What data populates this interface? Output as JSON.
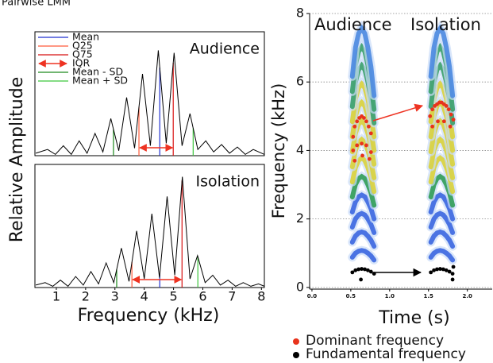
{
  "header": "Pairwise LMM",
  "chart_data": [
    {
      "type": "line",
      "label": "Audience",
      "color": "#000000",
      "ylabel": "Relative Amplitude",
      "x": [
        0.3,
        0.7,
        0.97,
        1.24,
        1.51,
        1.78,
        2.05,
        2.32,
        2.59,
        2.86,
        3.13,
        3.4,
        3.67,
        3.94,
        4.21,
        4.48,
        4.75,
        5.02,
        5.29,
        5.56,
        5.83,
        6.1,
        6.37,
        6.64,
        6.91,
        7.18,
        7.45,
        7.72,
        8.1
      ],
      "values": [
        0.02,
        0.05,
        0.01,
        0.08,
        0.01,
        0.12,
        0.02,
        0.18,
        0.03,
        0.3,
        0.04,
        0.47,
        0.06,
        0.66,
        0.08,
        0.85,
        0.1,
        0.83,
        0.08,
        0.34,
        0.05,
        0.12,
        0.03,
        0.09,
        0.02,
        0.07,
        0.01,
        0.05,
        0.01
      ],
      "xlim": [
        0.27,
        8.1
      ],
      "ylim": [
        0,
        1
      ],
      "mean": 4.53,
      "q25": 3.82,
      "q75": 4.99,
      "sd_low": 2.95,
      "sd_high": 5.67,
      "legend": [
        {
          "name": "Mean",
          "color": "#2030d0",
          "line": "mean"
        },
        {
          "name": "Q25",
          "color": "#ff5a3a",
          "line": "q25"
        },
        {
          "name": "Q75",
          "color": "#d81212",
          "line": "q75"
        },
        {
          "name": "IQR",
          "color": "#ee3322",
          "arrow": [
            "q25",
            "q75"
          ]
        },
        {
          "name": "Mean - SD",
          "color": "#1d8a1d",
          "line": "sd_low"
        },
        {
          "name": "Mean + SD",
          "color": "#3cc63c",
          "line": "sd_high"
        }
      ]
    },
    {
      "type": "line",
      "label": "Isolation",
      "color": "#000000",
      "xlabel": "Frequency (kHz)",
      "x": [
        0.3,
        0.62,
        0.88,
        1.14,
        1.4,
        1.66,
        1.92,
        2.18,
        2.44,
        2.7,
        2.96,
        3.22,
        3.48,
        3.74,
        4.0,
        4.26,
        4.52,
        4.78,
        5.04,
        5.3,
        5.56,
        5.82,
        6.08,
        6.34,
        6.6,
        6.86,
        7.12,
        7.38,
        7.64,
        7.9,
        8.1
      ],
      "values": [
        0.02,
        0.04,
        0.01,
        0.06,
        0.01,
        0.09,
        0.02,
        0.13,
        0.03,
        0.2,
        0.04,
        0.32,
        0.05,
        0.46,
        0.07,
        0.6,
        0.08,
        0.74,
        0.1,
        0.9,
        0.07,
        0.26,
        0.04,
        0.1,
        0.02,
        0.06,
        0.01,
        0.04,
        0.01,
        0.03,
        0.01
      ],
      "xlim": [
        0.27,
        8.1
      ],
      "ylim": [
        0,
        1
      ],
      "xticks": [
        1,
        2,
        3,
        4,
        5,
        6,
        7,
        8
      ],
      "mean": 4.53,
      "q25": 3.58,
      "q75": 5.29,
      "sd_low": 3.06,
      "sd_high": 5.83
    },
    {
      "type": "scatter",
      "annotations": [
        "Audience",
        "Isolation"
      ],
      "xlabel": "Time (s)",
      "ylabel": "Frequency (kHz)",
      "xlim": [
        -0.03,
        2.32
      ],
      "ylim": [
        -0.05,
        8
      ],
      "xticks": [
        {
          "value": 0,
          "label": "0.0"
        },
        {
          "value": 0.5,
          "label": "0.5"
        },
        {
          "value": 1,
          "label": "1.0"
        },
        {
          "value": 1.5,
          "label": "1.5"
        },
        {
          "value": 2,
          "label": "2.0"
        }
      ],
      "yticks": [
        0,
        2,
        4,
        6,
        8
      ],
      "grid": true,
      "series": [
        {
          "name": "Dominant frequency",
          "color": "#e8331c",
          "x": [
            0.53,
            0.55,
            0.58,
            0.61,
            0.64,
            0.67,
            0.7,
            0.73,
            0.76,
            0.53,
            0.58,
            0.64,
            0.7,
            0.76,
            0.55,
            0.65,
            0.74,
            1.52,
            1.55,
            1.58,
            1.61,
            1.64,
            1.67,
            1.7,
            1.73,
            1.76,
            1.79,
            1.82,
            1.55,
            1.62,
            1.7,
            1.78
          ],
          "values": [
            4.4,
            4.7,
            4.85,
            4.95,
            5.0,
            4.95,
            4.85,
            4.7,
            4.5,
            4.0,
            4.15,
            4.2,
            4.15,
            3.95,
            3.7,
            3.85,
            3.75,
            5.0,
            5.2,
            5.3,
            5.35,
            5.4,
            5.4,
            5.35,
            5.3,
            5.2,
            5.05,
            4.9,
            4.7,
            4.85,
            4.85,
            4.7
          ]
        },
        {
          "name": "Fundamental frequency",
          "color": "#000000",
          "x": [
            0.52,
            0.56,
            0.6,
            0.64,
            0.68,
            0.72,
            0.76,
            0.8,
            0.63,
            1.53,
            1.57,
            1.61,
            1.65,
            1.69,
            1.73,
            1.77,
            1.81,
            1.82,
            1.81
          ],
          "values": [
            0.44,
            0.5,
            0.53,
            0.54,
            0.53,
            0.5,
            0.46,
            0.4,
            0.23,
            0.44,
            0.5,
            0.53,
            0.54,
            0.53,
            0.5,
            0.46,
            0.4,
            0.6,
            0.23
          ]
        }
      ]
    }
  ]
}
